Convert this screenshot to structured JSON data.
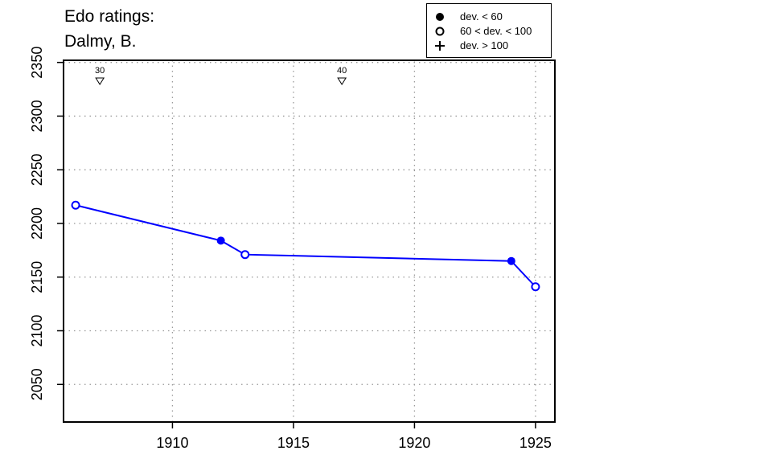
{
  "title": [
    "Edo ratings:",
    "Dalmy, B."
  ],
  "legend": {
    "items": [
      {
        "symbol": "filled-circle",
        "label": "dev. < 60"
      },
      {
        "symbol": "open-circle",
        "label": "60 < dev. < 100"
      },
      {
        "symbol": "plus",
        "label": "dev. > 100"
      }
    ]
  },
  "colors": {
    "series": "#0000ff",
    "axis": "#000000",
    "grid": "#999999"
  },
  "chart_data": {
    "type": "line",
    "title": "Edo ratings: Dalmy, B.",
    "xlabel": "",
    "ylabel": "",
    "xlim": [
      1905.5,
      1925.8
    ],
    "ylim": [
      2015,
      2352
    ],
    "xticks": [
      1910,
      1915,
      1920,
      1925
    ],
    "yticks": [
      2050,
      2100,
      2150,
      2200,
      2250,
      2300,
      2350
    ],
    "grid": true,
    "legend_position": "top-right",
    "series": [
      {
        "points": [
          {
            "x": 1906,
            "y": 2217,
            "marker": "open-circle"
          },
          {
            "x": 1912,
            "y": 2184,
            "marker": "filled-circle"
          },
          {
            "x": 1913,
            "y": 2171,
            "marker": "open-circle"
          },
          {
            "x": 1924,
            "y": 2165,
            "marker": "filled-circle"
          },
          {
            "x": 1925,
            "y": 2141,
            "marker": "open-circle"
          }
        ]
      }
    ],
    "annotations": [
      {
        "x": 1907,
        "label": "30",
        "symbol": "down-triangle"
      },
      {
        "x": 1917,
        "label": "40",
        "symbol": "down-triangle"
      }
    ]
  }
}
